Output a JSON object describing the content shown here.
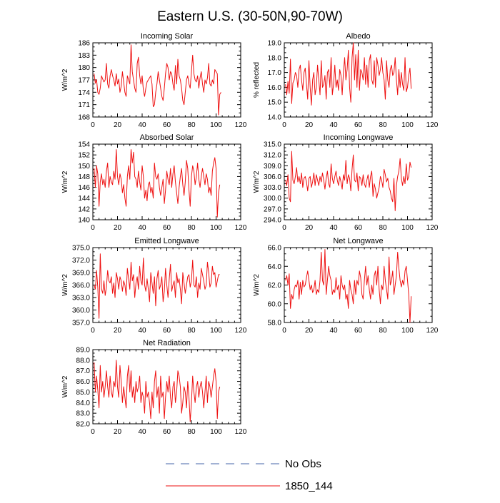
{
  "figure": {
    "title": "Eastern U.S. (30-50N,90-70W)",
    "series_color": "#ee1111",
    "obs_color": "#4466aa"
  },
  "legend": {
    "entries": [
      {
        "label": "No Obs",
        "style": "dashed",
        "color": "#4466aa"
      },
      {
        "label": "1850_144",
        "style": "solid",
        "color": "#ee1111"
      }
    ]
  },
  "chart_data": [
    {
      "type": "line",
      "title": "Incoming Solar",
      "ylabel": "W/m^2",
      "xlim": [
        0,
        120
      ],
      "ylim": [
        168,
        186
      ],
      "xticks": [
        0,
        20,
        40,
        60,
        80,
        100,
        120
      ],
      "yticks": [
        "168",
        "171",
        "174",
        "177",
        "180",
        "183",
        "186"
      ],
      "series": [
        {
          "values": [
            178.5,
            176.2,
            177.1,
            174.0,
            173.5,
            175.0,
            178.0,
            177.2,
            176.5,
            177.0,
            181.0,
            176.0,
            175.0,
            178.0,
            179.5,
            178.0,
            177.0,
            175.5,
            178.5,
            176.0,
            177.2,
            174.0,
            175.5,
            179.0,
            176.5,
            174.0,
            173.0,
            178.0,
            177.0,
            176.0,
            185.5,
            179.0,
            177.0,
            175.0,
            174.0,
            181.0,
            182.5,
            178.0,
            176.0,
            178.0,
            174.5,
            173.0,
            175.0,
            176.5,
            177.0,
            177.5,
            178.0,
            176.0,
            170.5,
            171.0,
            174.0,
            176.0,
            179.0,
            177.0,
            175.0,
            173.0,
            172.0,
            175.0,
            178.5,
            181.0,
            180.0,
            177.0,
            179.0,
            178.5,
            176.0,
            174.5,
            180.5,
            176.0,
            182.0,
            178.0,
            177.0,
            175.0,
            172.0,
            171.0,
            174.0,
            177.0,
            178.0,
            176.0,
            175.0,
            179.0,
            183.0,
            178.5,
            177.0,
            176.5,
            178.0,
            175.0,
            177.5,
            179.0,
            176.0,
            174.0,
            177.0,
            176.0,
            177.5,
            181.0,
            176.0,
            175.5,
            177.0,
            176.0,
            179.5,
            179.0,
            178.5,
            168.5,
            173.5,
            174.0
          ]
        }
      ]
    },
    {
      "type": "line",
      "title": "Albedo",
      "ylabel": "% reflected",
      "xlim": [
        0,
        120
      ],
      "ylim": [
        14.0,
        19.0
      ],
      "xticks": [
        0,
        20,
        40,
        60,
        80,
        100,
        120
      ],
      "yticks": [
        "14.0",
        "15.0",
        "16.0",
        "17.0",
        "18.0",
        "19.0"
      ],
      "series": [
        {
          "values": [
            16.2,
            15.5,
            16.4,
            15.6,
            17.9,
            14.9,
            16.3,
            16.5,
            17.0,
            16.8,
            16.0,
            17.2,
            17.5,
            16.5,
            15.8,
            17.0,
            17.3,
            16.2,
            15.2,
            17.8,
            16.0,
            14.8,
            16.5,
            17.0,
            15.5,
            16.0,
            17.5,
            16.5,
            15.5,
            17.8,
            16.0,
            16.2,
            16.8,
            15.2,
            17.0,
            17.2,
            16.0,
            18.0,
            15.5,
            16.2,
            17.5,
            16.0,
            16.5,
            15.8,
            17.2,
            16.8,
            15.5,
            17.0,
            18.0,
            16.5,
            17.2,
            18.5,
            16.0,
            15.0,
            18.0,
            19.0,
            16.5,
            18.2,
            16.0,
            18.5,
            15.8,
            17.2,
            17.0,
            16.5,
            18.0,
            16.2,
            17.5,
            16.0,
            17.8,
            18.2,
            16.5,
            16.2,
            17.8,
            16.0,
            18.0,
            17.5,
            16.8,
            17.2,
            18.0,
            17.0,
            16.5,
            15.2,
            17.8,
            16.5,
            16.0,
            17.2,
            17.5,
            16.8,
            17.0,
            18.0,
            16.5,
            15.5,
            17.2,
            16.0,
            17.0,
            16.2,
            15.8,
            18.0,
            15.7,
            16.0,
            16.8,
            17.3,
            15.9
          ]
        }
      ]
    },
    {
      "type": "line",
      "title": "Absorbed Solar",
      "ylabel": "W/m^2",
      "xlim": [
        0,
        120
      ],
      "ylim": [
        140,
        154
      ],
      "xticks": [
        0,
        20,
        40,
        60,
        80,
        100,
        120
      ],
      "yticks": [
        "140",
        "142",
        "144",
        "146",
        "148",
        "150",
        "152",
        "154"
      ],
      "series": [
        {
          "values": [
            149.5,
            146.0,
            150.0,
            148.5,
            142.5,
            147.0,
            148.5,
            146.5,
            147.5,
            146.0,
            149.0,
            150.5,
            146.0,
            148.0,
            147.0,
            146.5,
            149.0,
            147.5,
            153.0,
            148.0,
            146.5,
            148.5,
            147.5,
            145.0,
            146.5,
            144.0,
            142.5,
            148.0,
            150.0,
            147.5,
            153.0,
            150.5,
            152.5,
            148.0,
            147.5,
            146.0,
            149.0,
            147.0,
            145.5,
            150.0,
            148.0,
            144.0,
            145.5,
            143.5,
            146.5,
            147.0,
            145.0,
            146.0,
            144.0,
            150.5,
            148.0,
            147.5,
            148.5,
            146.0,
            144.5,
            146.0,
            147.5,
            143.0,
            145.5,
            149.0,
            147.5,
            146.5,
            149.5,
            146.0,
            148.5,
            150.0,
            147.0,
            145.0,
            143.0,
            146.0,
            148.0,
            149.5,
            146.5,
            144.5,
            147.0,
            151.0,
            149.5,
            145.5,
            142.5,
            148.0,
            150.0,
            149.0,
            146.5,
            148.0,
            150.5,
            147.5,
            146.0,
            148.0,
            149.5,
            148.0,
            146.5,
            148.5,
            147.5,
            145.0,
            146.0,
            144.5,
            149.0,
            150.5,
            151.5,
            149.5,
            140.5,
            145.0,
            146.5
          ]
        }
      ]
    },
    {
      "type": "line",
      "title": "Incoming Longwave",
      "ylabel": "W/m^2",
      "xlim": [
        0,
        120
      ],
      "ylim": [
        294.0,
        315.0
      ],
      "xticks": [
        0,
        20,
        40,
        60,
        80,
        100,
        120
      ],
      "yticks": [
        "294.0",
        "297.0",
        "300.0",
        "303.0",
        "306.0",
        "309.0",
        "312.0",
        "315.0"
      ],
      "series": [
        {
          "values": [
            305.0,
            303.5,
            306.5,
            300.0,
            299.0,
            313.0,
            305.0,
            304.0,
            306.0,
            308.5,
            304.5,
            306.0,
            304.0,
            307.0,
            303.0,
            305.5,
            306.0,
            304.5,
            302.0,
            305.5,
            306.0,
            303.0,
            304.5,
            307.0,
            303.5,
            306.5,
            305.0,
            303.5,
            306.0,
            304.5,
            307.0,
            305.0,
            302.5,
            305.5,
            307.5,
            304.0,
            303.0,
            309.5,
            305.5,
            304.0,
            306.0,
            307.5,
            305.0,
            303.5,
            306.0,
            304.5,
            302.5,
            306.5,
            305.0,
            310.5,
            304.0,
            306.5,
            305.5,
            302.0,
            308.0,
            312.0,
            305.0,
            304.5,
            307.0,
            302.0,
            306.0,
            305.5,
            303.5,
            306.5,
            304.0,
            303.0,
            305.0,
            306.5,
            303.0,
            306.0,
            307.5,
            300.5,
            304.0,
            302.5,
            300.0,
            301.5,
            303.0,
            306.0,
            305.0,
            303.0,
            308.0,
            306.5,
            304.5,
            305.5,
            303.0,
            302.0,
            300.0,
            299.0,
            305.5,
            296.5,
            303.5,
            306.0,
            307.5,
            311.0,
            305.5,
            303.5,
            306.0,
            304.0,
            309.5,
            305.0,
            306.0,
            310.0,
            308.5
          ]
        }
      ]
    },
    {
      "type": "line",
      "title": "Emitted Longwave",
      "ylabel": "W/m^2",
      "xlim": [
        0,
        120
      ],
      "ylim": [
        357.0,
        375.0
      ],
      "xticks": [
        0,
        20,
        40,
        60,
        80,
        100,
        120
      ],
      "yticks": [
        "357.0",
        "360.0",
        "363.0",
        "366.0",
        "369.0",
        "372.0",
        "375.0"
      ],
      "series": [
        {
          "values": [
            366.0,
            365.0,
            369.5,
            365.5,
            358.0,
            373.5,
            365.0,
            364.0,
            367.0,
            363.5,
            365.5,
            369.5,
            367.0,
            366.5,
            368.0,
            364.0,
            366.5,
            363.0,
            369.0,
            367.5,
            365.0,
            368.0,
            367.0,
            364.5,
            367.0,
            366.0,
            363.5,
            370.0,
            367.5,
            365.0,
            371.5,
            367.0,
            368.5,
            363.0,
            366.5,
            368.0,
            365.0,
            370.5,
            367.0,
            366.0,
            372.5,
            366.0,
            364.5,
            367.5,
            365.0,
            362.0,
            369.0,
            366.5,
            364.0,
            368.0,
            361.0,
            367.5,
            369.5,
            365.0,
            366.0,
            368.0,
            362.0,
            364.5,
            370.0,
            366.0,
            363.0,
            367.5,
            371.0,
            364.5,
            366.0,
            367.0,
            363.0,
            369.0,
            366.5,
            367.5,
            365.0,
            361.5,
            369.0,
            366.5,
            364.0,
            366.0,
            368.0,
            368.5,
            365.5,
            367.0,
            372.0,
            366.0,
            365.5,
            368.0,
            363.0,
            366.5,
            365.0,
            370.0,
            368.5,
            367.0,
            365.0,
            366.0,
            371.5,
            369.0,
            365.5,
            366.5,
            370.5,
            368.5,
            369.0,
            365.5,
            367.0,
            368.5,
            368.5
          ]
        }
      ]
    },
    {
      "type": "line",
      "title": "Net Longwave",
      "ylabel": "W/m^2",
      "xlim": [
        0,
        120
      ],
      "ylim": [
        58.0,
        66.0
      ],
      "xticks": [
        0,
        20,
        40,
        60,
        80,
        100,
        120
      ],
      "yticks": [
        "58.0",
        "60.0",
        "62.0",
        "64.0",
        "66.0"
      ],
      "series": [
        {
          "values": [
            62.5,
            63.0,
            62.0,
            63.2,
            59.5,
            61.0,
            60.5,
            61.5,
            62.0,
            61.8,
            62.5,
            60.5,
            62.3,
            61.0,
            62.5,
            61.8,
            62.0,
            62.8,
            63.5,
            62.5,
            61.5,
            62.0,
            61.2,
            61.5,
            62.5,
            61.0,
            61.5,
            61.2,
            62.5,
            65.5,
            62.5,
            62.0,
            65.8,
            61.0,
            62.5,
            64.0,
            63.0,
            62.5,
            61.0,
            61.5,
            61.2,
            62.8,
            61.5,
            62.0,
            60.5,
            63.0,
            62.0,
            61.5,
            62.0,
            60.5,
            61.0,
            59.5,
            62.5,
            61.5,
            61.0,
            60.0,
            62.5,
            61.0,
            62.5,
            62.0,
            63.5,
            62.8,
            61.0,
            60.5,
            62.5,
            64.0,
            62.0,
            63.0,
            61.5,
            60.5,
            62.0,
            61.0,
            63.0,
            63.5,
            62.0,
            64.0,
            61.5,
            60.0,
            62.0,
            61.5,
            64.0,
            62.5,
            61.5,
            60.5,
            65.0,
            62.0,
            62.5,
            63.5,
            61.0,
            62.0,
            63.0,
            65.5,
            63.8,
            62.5,
            61.8,
            62.5,
            62.0,
            63.5,
            64.0,
            62.5,
            61.0,
            58.0,
            60.8
          ]
        }
      ]
    },
    {
      "type": "line",
      "title": "Net Radiation",
      "ylabel": "W/m^2",
      "xlim": [
        0,
        120
      ],
      "ylim": [
        82.0,
        89.0
      ],
      "xticks": [
        0,
        20,
        40,
        60,
        80,
        100,
        120
      ],
      "yticks": [
        "82.0",
        "83.0",
        "84.0",
        "85.0",
        "86.0",
        "87.0",
        "88.0",
        "89.0"
      ],
      "series": [
        {
          "values": [
            87.8,
            85.0,
            86.5,
            85.2,
            83.5,
            87.5,
            85.0,
            86.0,
            84.5,
            85.5,
            87.0,
            85.5,
            84.5,
            86.5,
            85.0,
            84.5,
            86.0,
            85.5,
            88.0,
            85.5,
            84.5,
            87.5,
            86.0,
            84.0,
            85.5,
            84.5,
            83.5,
            86.5,
            87.5,
            85.0,
            87.0,
            84.5,
            85.5,
            84.0,
            86.0,
            85.0,
            85.5,
            86.5,
            84.0,
            85.0,
            84.5,
            83.0,
            86.0,
            84.5,
            85.0,
            84.0,
            82.5,
            85.0,
            83.5,
            86.0,
            87.0,
            84.5,
            85.5,
            83.0,
            86.5,
            84.5,
            85.0,
            82.5,
            84.5,
            86.0,
            85.0,
            86.5,
            84.5,
            83.5,
            85.5,
            86.0,
            84.0,
            85.0,
            87.0,
            86.5,
            85.5,
            83.0,
            84.0,
            85.5,
            85.0,
            83.5,
            86.0,
            84.5,
            82.2,
            84.0,
            86.5,
            85.0,
            84.0,
            85.5,
            86.0,
            84.5,
            85.5,
            86.0,
            85.0,
            83.5,
            85.0,
            86.5,
            84.0,
            86.0,
            85.5,
            84.5,
            85.5,
            86.5,
            87.2,
            86.0,
            82.5,
            85.0,
            85.5
          ]
        }
      ]
    }
  ]
}
